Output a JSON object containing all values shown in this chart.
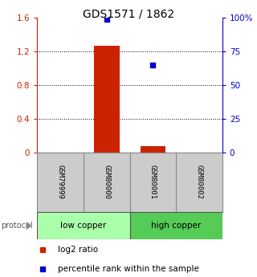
{
  "title": "GDS1571 / 1862",
  "samples": [
    "GSM79999",
    "GSM80000",
    "GSM80001",
    "GSM80002"
  ],
  "log2_ratio": [
    0.0,
    1.27,
    0.07,
    0.0
  ],
  "percentile_rank": [
    null,
    99.0,
    65.0,
    null
  ],
  "ylim_left": [
    0,
    1.6
  ],
  "ylim_right": [
    0,
    100
  ],
  "left_ticks": [
    0,
    0.4,
    0.8,
    1.2,
    1.6
  ],
  "right_ticks": [
    0,
    25,
    50,
    75,
    100
  ],
  "right_tick_labels": [
    "0",
    "25",
    "50",
    "75",
    "100%"
  ],
  "bar_color": "#cc2200",
  "dot_color": "#0000cc",
  "protocol_groups": [
    {
      "label": "low copper",
      "samples": [
        0,
        1
      ],
      "color": "#aaffaa"
    },
    {
      "label": "high copper",
      "samples": [
        2,
        3
      ],
      "color": "#55cc55"
    }
  ],
  "legend_bar_label": "log2 ratio",
  "legend_dot_label": "percentile rank within the sample",
  "left_axis_color": "#cc2200",
  "right_axis_color": "#0000cc",
  "sample_bg_color": "#cccccc",
  "title_fontsize": 10,
  "tick_fontsize": 7.5,
  "label_fontsize": 7.5,
  "protocol_fontsize": 7.5
}
